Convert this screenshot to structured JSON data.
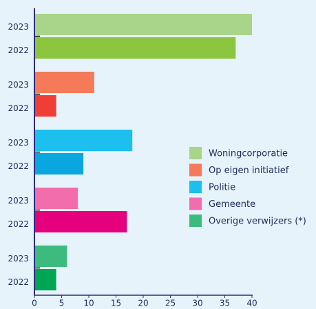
{
  "chart_data": {
    "type": "bar",
    "orientation": "horizontal",
    "categories": [
      "2023",
      "2022"
    ],
    "series": [
      {
        "name": "Woningcorporatie",
        "colors": [
          "#a8d58a",
          "#8cc63f"
        ],
        "values": [
          40,
          37
        ]
      },
      {
        "name": "Op eigen initiatief",
        "colors": [
          "#f47a5a",
          "#ef3e36"
        ],
        "values": [
          11,
          4
        ]
      },
      {
        "name": "Politie",
        "colors": [
          "#1cc0ee",
          "#0aa6e0"
        ],
        "values": [
          18,
          9
        ]
      },
      {
        "name": "Gemeente",
        "colors": [
          "#f26dab",
          "#e5007e"
        ],
        "values": [
          8,
          17
        ]
      },
      {
        "name": "Overige verwijzers (*)",
        "colors": [
          "#3dbb7f",
          "#00a651"
        ],
        "values": [
          6,
          4
        ]
      }
    ],
    "xlim": [
      0,
      40
    ],
    "xticks": [
      0,
      5,
      10,
      15,
      20,
      25,
      30,
      35,
      40
    ],
    "legend": "right"
  }
}
